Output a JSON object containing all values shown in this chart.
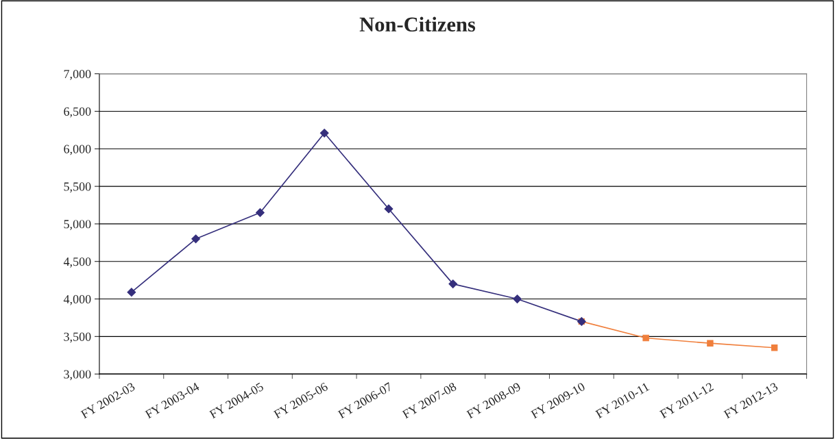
{
  "chart_data": {
    "type": "line",
    "title": "Non-Citizens",
    "categories": [
      "FY 2002-03",
      "FY 2003-04",
      "FY 2004-05",
      "FY 2005-06",
      "FY 2006-07",
      "FY 2007-08",
      "FY 2008-09",
      "FY 2009-10",
      "FY 2010-11",
      "FY 2011-12",
      "FY 2012-13"
    ],
    "series": [
      {
        "color": "#f07f3c",
        "marker": "square",
        "values": [
          null,
          null,
          null,
          null,
          null,
          null,
          null,
          3700,
          3480,
          3410,
          3350
        ]
      },
      {
        "color": "#352f7c",
        "marker": "diamond",
        "values": [
          4090,
          4800,
          5150,
          6210,
          5200,
          4200,
          4000,
          3700,
          null,
          null,
          null
        ]
      }
    ],
    "ylim": [
      3000,
      7000
    ],
    "yticks": [
      {
        "value": 3000,
        "label": "3,000"
      },
      {
        "value": 3500,
        "label": "3,500"
      },
      {
        "value": 4000,
        "label": "4,000"
      },
      {
        "value": 4500,
        "label": "4,500"
      },
      {
        "value": 5000,
        "label": "5,000"
      },
      {
        "value": 5500,
        "label": "5,500"
      },
      {
        "value": 6000,
        "label": "6,000"
      },
      {
        "value": 6500,
        "label": "6,500"
      },
      {
        "value": 7000,
        "label": "7,000"
      }
    ],
    "grid": "y",
    "legend": false
  }
}
